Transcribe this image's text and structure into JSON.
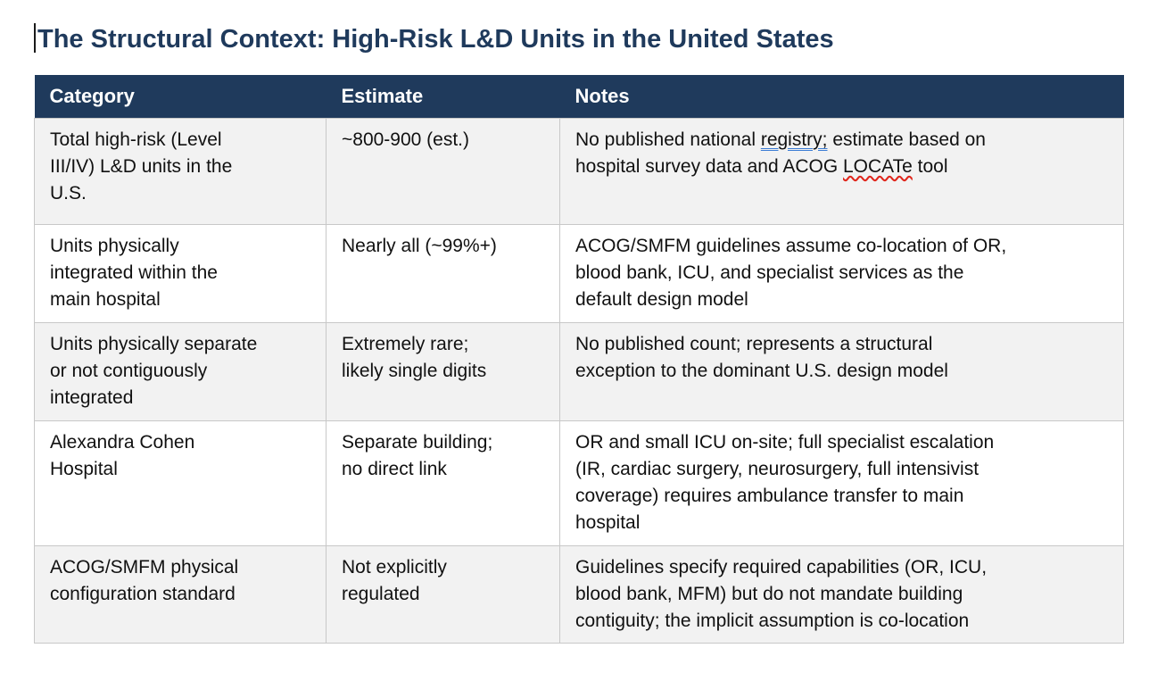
{
  "document": {
    "title": "The Structural Context: High-Risk L&D Units in the United States"
  },
  "table": {
    "headers": [
      "Category",
      "Estimate",
      "Notes"
    ],
    "rows": [
      {
        "category": "Total high-risk (Level III/IV) L&D units in the U.S.",
        "estimate": "~800-900 (est.)",
        "notes_pre": "No published national ",
        "notes_grammar": "registry;",
        "notes_mid": " estimate based on hospital survey data and ACOG ",
        "notes_spell": "LOCATe",
        "notes_post": " tool"
      },
      {
        "category": "Units physically integrated within the main hospital",
        "estimate": "Nearly all (~99%+)",
        "notes": "ACOG/SMFM guidelines assume co-location of OR, blood bank, ICU, and specialist services as the default design model"
      },
      {
        "category": "Units physically separate or not contiguously integrated",
        "estimate": "Extremely rare; likely single digits",
        "notes": "No published count; represents a structural exception to the dominant U.S. design model"
      },
      {
        "category": "Alexandra Cohen Hospital",
        "estimate": "Separate building; no direct link",
        "notes": "OR and small ICU on-site; full specialist escalation (IR, cardiac surgery, neurosurgery, full intensivist coverage) requires ambulance transfer to main hospital"
      },
      {
        "category": "ACOG/SMFM physical configuration standard",
        "estimate": "Not explicitly regulated",
        "notes": "Guidelines specify required capabilities (OR, ICU, blood bank, MFM) but do not mandate building contiguity; the implicit assumption is co-location"
      }
    ]
  },
  "colors": {
    "title_text": "#1F3A5C",
    "header_bg": "#1F3A5C",
    "header_text": "#FFFFFF",
    "row_stripe_bg": "#F2F2F2",
    "row_alt_bg": "#FFFFFF",
    "cell_border": "#C8C8C8",
    "grammar_underline": "#3B7CD5",
    "spellcheck_underline": "#E0261C"
  }
}
